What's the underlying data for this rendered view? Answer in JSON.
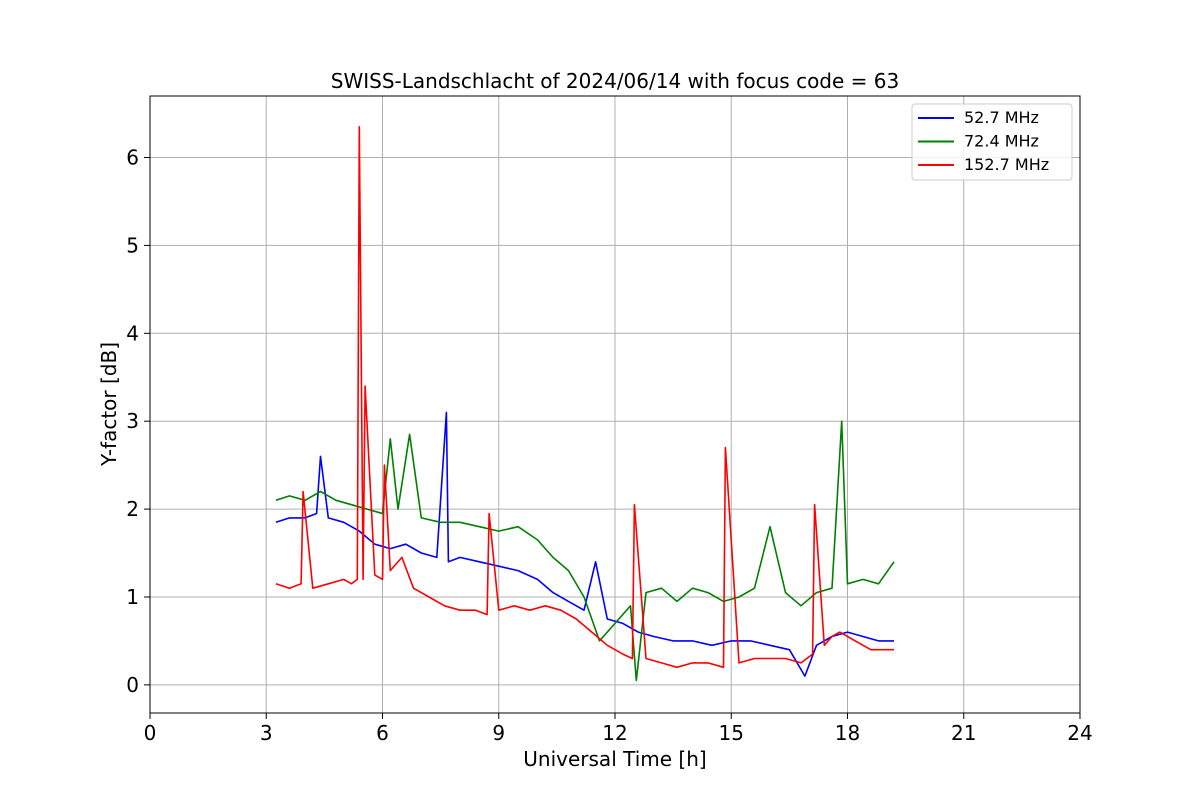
{
  "chart_data": {
    "type": "line",
    "title": "SWISS-Landschlacht of 2024/06/14 with focus code = 63",
    "xlabel": "Universal Time [h]",
    "ylabel": "Y-factor [dB]",
    "xlim": [
      0,
      24
    ],
    "ylim": [
      -0.32,
      6.7
    ],
    "xticks": [
      0,
      3,
      6,
      9,
      12,
      15,
      18,
      21,
      24
    ],
    "yticks": [
      0,
      1,
      2,
      3,
      4,
      5,
      6
    ],
    "grid": true,
    "legend_position": "top-right",
    "series": [
      {
        "name": "  52.7 MHz",
        "color": "#0000ff",
        "x": [
          3.25,
          3.6,
          4.0,
          4.3,
          4.4,
          4.6,
          5.0,
          5.4,
          5.8,
          6.2,
          6.6,
          7.0,
          7.4,
          7.65,
          7.7,
          8.0,
          8.5,
          9.0,
          9.5,
          10.0,
          10.4,
          10.8,
          11.2,
          11.5,
          11.8,
          12.2,
          12.6,
          13.0,
          13.5,
          14.0,
          14.5,
          15.0,
          15.5,
          16.0,
          16.5,
          16.9,
          17.2,
          17.6,
          18.0,
          18.4,
          18.8,
          19.2
        ],
        "y": [
          1.85,
          1.9,
          1.9,
          1.95,
          2.6,
          1.9,
          1.85,
          1.75,
          1.6,
          1.55,
          1.6,
          1.5,
          1.45,
          3.1,
          1.4,
          1.45,
          1.4,
          1.35,
          1.3,
          1.2,
          1.05,
          0.95,
          0.85,
          1.4,
          0.75,
          0.7,
          0.6,
          0.55,
          0.5,
          0.5,
          0.45,
          0.5,
          0.5,
          0.45,
          0.4,
          0.1,
          0.45,
          0.55,
          0.6,
          0.55,
          0.5,
          0.5
        ]
      },
      {
        "name": "  72.4 MHz",
        "color": "#008000",
        "x": [
          3.25,
          3.6,
          4.0,
          4.4,
          4.8,
          5.2,
          5.6,
          6.0,
          6.2,
          6.4,
          6.7,
          7.0,
          7.5,
          8.0,
          8.5,
          9.0,
          9.5,
          10.0,
          10.4,
          10.8,
          11.2,
          11.6,
          12.0,
          12.4,
          12.55,
          12.8,
          13.2,
          13.6,
          14.0,
          14.4,
          14.8,
          15.2,
          15.6,
          16.0,
          16.4,
          16.8,
          17.2,
          17.6,
          17.85,
          18.0,
          18.4,
          18.8,
          19.2
        ],
        "y": [
          2.1,
          2.15,
          2.1,
          2.2,
          2.1,
          2.05,
          2.0,
          1.95,
          2.8,
          2.0,
          2.85,
          1.9,
          1.85,
          1.85,
          1.8,
          1.75,
          1.8,
          1.65,
          1.45,
          1.3,
          1.0,
          0.5,
          0.7,
          0.9,
          0.05,
          1.05,
          1.1,
          0.95,
          1.1,
          1.05,
          0.95,
          1.0,
          1.1,
          1.8,
          1.05,
          0.9,
          1.05,
          1.1,
          3.0,
          1.15,
          1.2,
          1.15,
          1.4
        ]
      },
      {
        "name": " 152.7 MHz",
        "color": "#ff0000",
        "x": [
          3.25,
          3.6,
          3.9,
          3.95,
          4.2,
          4.6,
          5.0,
          5.2,
          5.35,
          5.4,
          5.5,
          5.55,
          5.8,
          6.0,
          6.05,
          6.2,
          6.5,
          6.8,
          7.2,
          7.6,
          8.0,
          8.4,
          8.7,
          8.75,
          9.0,
          9.4,
          9.8,
          10.2,
          10.6,
          11.0,
          11.4,
          11.8,
          12.2,
          12.45,
          12.5,
          12.8,
          13.2,
          13.6,
          14.0,
          14.4,
          14.8,
          14.85,
          15.2,
          15.6,
          16.0,
          16.4,
          16.8,
          17.1,
          17.15,
          17.4,
          17.6,
          17.8,
          18.2,
          18.6,
          19.2
        ],
        "y": [
          1.15,
          1.1,
          1.15,
          2.2,
          1.1,
          1.15,
          1.2,
          1.15,
          1.2,
          6.35,
          1.2,
          3.4,
          1.25,
          1.2,
          2.5,
          1.3,
          1.45,
          1.1,
          1.0,
          0.9,
          0.85,
          0.85,
          0.8,
          1.95,
          0.85,
          0.9,
          0.85,
          0.9,
          0.85,
          0.75,
          0.6,
          0.45,
          0.35,
          0.3,
          2.05,
          0.3,
          0.25,
          0.2,
          0.25,
          0.25,
          0.2,
          2.7,
          0.25,
          0.3,
          0.3,
          0.3,
          0.25,
          0.35,
          2.05,
          0.45,
          0.55,
          0.6,
          0.5,
          0.4,
          0.4
        ]
      }
    ]
  }
}
